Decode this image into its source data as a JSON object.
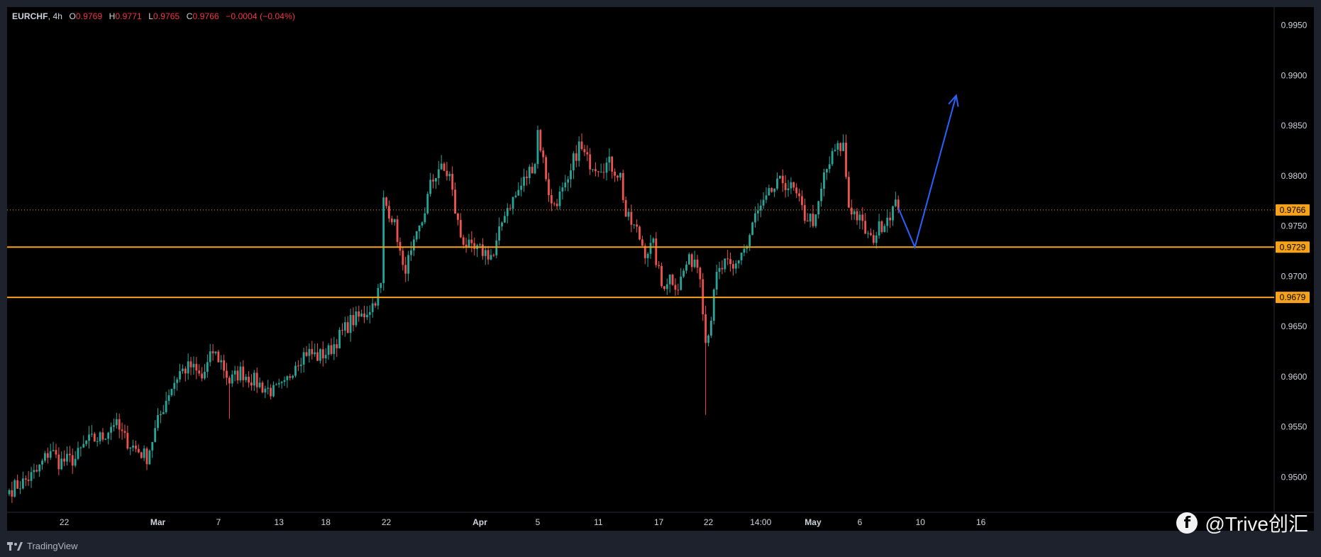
{
  "legend": {
    "symbol": "EURCHF",
    "timeframe": "4h",
    "open_label": "O",
    "open": "0.9769",
    "high_label": "H",
    "high": "0.9771",
    "low_label": "L",
    "low": "0.9765",
    "close_label": "C",
    "close": "0.9766",
    "change": "−0.0004 (−0.04%)"
  },
  "footer": {
    "brand": "TradingView"
  },
  "watermark": {
    "text": "@Trive创汇"
  },
  "colors": {
    "background": "#000000",
    "frame": "#1e222d",
    "up": "#26a69a",
    "down": "#ef5350",
    "level": "#f7a21b",
    "projection": "#2962ff",
    "text": "#d1d4dc"
  },
  "chart_data": {
    "type": "candlestick",
    "instrument": "EURCHF",
    "timeframe": "4h",
    "ylim": [
      0.9465,
      0.9968
    ],
    "y_ticks": [
      "0.9950",
      "0.9900",
      "0.9850",
      "0.9800",
      "0.9750",
      "0.9700",
      "0.9650",
      "0.9600",
      "0.9550",
      "0.9500"
    ],
    "x_ticks": [
      {
        "label": "22",
        "bar": 20
      },
      {
        "label": "Mar",
        "bar": 54
      },
      {
        "label": "7",
        "bar": 76
      },
      {
        "label": "13",
        "bar": 98
      },
      {
        "label": "18",
        "bar": 115
      },
      {
        "label": "22",
        "bar": 137
      },
      {
        "label": "Apr",
        "bar": 171
      },
      {
        "label": "5",
        "bar": 192
      },
      {
        "label": "11",
        "bar": 214
      },
      {
        "label": "17",
        "bar": 236
      },
      {
        "label": "22",
        "bar": 254
      },
      {
        "label": "14:00",
        "bar": 273
      },
      {
        "label": "May",
        "bar": 292
      },
      {
        "label": "6",
        "bar": 309
      },
      {
        "label": "10",
        "bar": 331
      },
      {
        "label": "16",
        "bar": 353
      }
    ],
    "price_labels": [
      {
        "label": "0.9766",
        "value": 0.9766,
        "style": "last-price"
      },
      {
        "label": "0.9729",
        "value": 0.9729,
        "style": "level"
      },
      {
        "label": "0.9679",
        "value": 0.9679,
        "style": "level"
      }
    ],
    "horizontal_levels": [
      0.9729,
      0.9679
    ],
    "current_price": 0.9766,
    "anchors": [
      [
        0,
        0.9487
      ],
      [
        5,
        0.9495
      ],
      [
        10,
        0.9505
      ],
      [
        15,
        0.9528
      ],
      [
        18,
        0.9515
      ],
      [
        24,
        0.9518
      ],
      [
        28,
        0.9535
      ],
      [
        34,
        0.954
      ],
      [
        38,
        0.9555
      ],
      [
        42,
        0.9538
      ],
      [
        46,
        0.9528
      ],
      [
        50,
        0.952
      ],
      [
        54,
        0.9555
      ],
      [
        58,
        0.9585
      ],
      [
        62,
        0.9605
      ],
      [
        66,
        0.961
      ],
      [
        70,
        0.9598
      ],
      [
        74,
        0.9625
      ],
      [
        77,
        0.9615
      ],
      [
        80,
        0.9595
      ],
      [
        84,
        0.9605
      ],
      [
        88,
        0.9598
      ],
      [
        92,
        0.959
      ],
      [
        96,
        0.9585
      ],
      [
        100,
        0.959
      ],
      [
        104,
        0.9615
      ],
      [
        108,
        0.9625
      ],
      [
        112,
        0.962
      ],
      [
        116,
        0.9625
      ],
      [
        120,
        0.964
      ],
      [
        124,
        0.9655
      ],
      [
        128,
        0.966
      ],
      [
        132,
        0.9672
      ],
      [
        135,
        0.969
      ],
      [
        136,
        0.9775
      ],
      [
        139,
        0.976
      ],
      [
        141,
        0.974
      ],
      [
        143,
        0.9705
      ],
      [
        146,
        0.972
      ],
      [
        150,
        0.9755
      ],
      [
        153,
        0.979
      ],
      [
        156,
        0.9808
      ],
      [
        160,
        0.98
      ],
      [
        162,
        0.9765
      ],
      [
        164,
        0.974
      ],
      [
        168,
        0.9725
      ],
      [
        172,
        0.9725
      ],
      [
        176,
        0.972
      ],
      [
        180,
        0.9765
      ],
      [
        184,
        0.978
      ],
      [
        188,
        0.98
      ],
      [
        191,
        0.9815
      ],
      [
        192,
        0.9845
      ],
      [
        195,
        0.98
      ],
      [
        197,
        0.977
      ],
      [
        200,
        0.978
      ],
      [
        203,
        0.979
      ],
      [
        205,
        0.9815
      ],
      [
        207,
        0.983
      ],
      [
        210,
        0.9815
      ],
      [
        214,
        0.981
      ],
      [
        218,
        0.9812
      ],
      [
        222,
        0.98
      ],
      [
        224,
        0.976
      ],
      [
        228,
        0.9745
      ],
      [
        231,
        0.9725
      ],
      [
        234,
        0.973
      ],
      [
        237,
        0.969
      ],
      [
        240,
        0.97
      ],
      [
        243,
        0.969
      ],
      [
        246,
        0.9712
      ],
      [
        249,
        0.9718
      ],
      [
        251,
        0.9705
      ],
      [
        253,
        0.9635
      ],
      [
        255,
        0.966
      ],
      [
        257,
        0.97
      ],
      [
        260,
        0.9712
      ],
      [
        263,
        0.9705
      ],
      [
        266,
        0.9725
      ],
      [
        268,
        0.973
      ],
      [
        271,
        0.976
      ],
      [
        274,
        0.977
      ],
      [
        277,
        0.9785
      ],
      [
        281,
        0.9795
      ],
      [
        285,
        0.9785
      ],
      [
        289,
        0.976
      ],
      [
        293,
        0.9755
      ],
      [
        296,
        0.98
      ],
      [
        300,
        0.9825
      ],
      [
        303,
        0.983
      ],
      [
        305,
        0.977
      ],
      [
        308,
        0.976
      ],
      [
        311,
        0.9745
      ],
      [
        313,
        0.9735
      ],
      [
        316,
        0.9748
      ],
      [
        319,
        0.976
      ],
      [
        322,
        0.977
      ],
      [
        323,
        0.9766
      ]
    ],
    "projection": [
      [
        323,
        0.9768
      ],
      [
        329,
        0.9729
      ],
      [
        344,
        0.988
      ]
    ]
  }
}
